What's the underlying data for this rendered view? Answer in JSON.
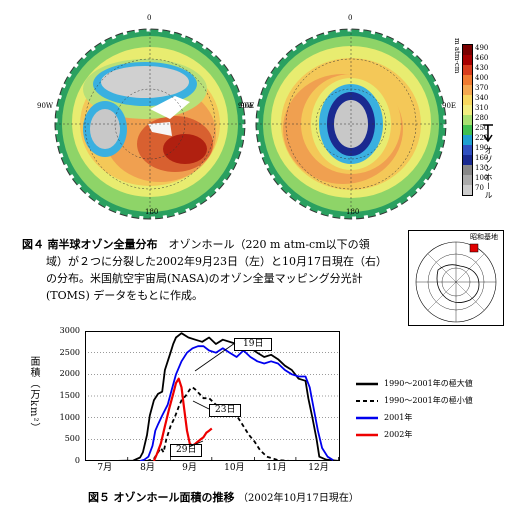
{
  "maps": {
    "left": {
      "lat_top": "0",
      "lat_bottom": "180",
      "lon_left": "90W",
      "lon_right": "90E"
    },
    "right": {
      "lat_top": "0",
      "lat_bottom": "180",
      "lon_left": "90W",
      "lon_right": "90E"
    }
  },
  "colorbar": {
    "unit": "m atm-cm",
    "ticks": [
      "490",
      "460",
      "430",
      "400",
      "370",
      "340",
      "310",
      "280",
      "250",
      "220",
      "190",
      "160",
      "130",
      "100",
      "70"
    ],
    "colors": [
      "#7a0000",
      "#a80000",
      "#d83c1c",
      "#f07a30",
      "#f5a850",
      "#f8d860",
      "#f2ee80",
      "#a8e070",
      "#40c050",
      "#20a0d0",
      "#3050c0",
      "#1a2a90",
      "#888888",
      "#aaaaaa",
      "#cccccc"
    ],
    "hole_label": "オゾンホール"
  },
  "figure4": {
    "num": "図４",
    "title": "南半球オゾン全量分布",
    "line1": "オゾンホール（220 m atm-cm以下の領",
    "line2": "域）が２つに分裂した2002年9月23日（左）と10月17日現在（右）",
    "line3": "の分布。米国航空宇宙局(NASA)のオゾン全量マッピング分光計",
    "line4": "(TOMS) データをもとに作成。"
  },
  "inset": {
    "label": "昭和基地"
  },
  "chart_data": {
    "type": "line",
    "ylabel": "面積（万km²）",
    "ylim": [
      0,
      3000
    ],
    "yticks": [
      "3000",
      "2500",
      "2000",
      "1500",
      "1000",
      "500",
      "0"
    ],
    "months": [
      "7月",
      "8月",
      "9月",
      "10月",
      "11月",
      "12月"
    ],
    "series": [
      {
        "name": "1990～2001年の極大値",
        "color": "#000000",
        "dash": "",
        "points": [
          [
            0,
            0
          ],
          [
            20,
            0
          ],
          [
            35,
            10
          ],
          [
            40,
            80
          ],
          [
            42,
            200
          ],
          [
            45,
            600
          ],
          [
            47,
            1050
          ],
          [
            50,
            1400
          ],
          [
            53,
            1550
          ],
          [
            56,
            1600
          ],
          [
            58,
            2100
          ],
          [
            60,
            2300
          ],
          [
            62,
            2500
          ],
          [
            64,
            2700
          ],
          [
            66,
            2850
          ],
          [
            70,
            2950
          ],
          [
            75,
            2850
          ],
          [
            80,
            2800
          ],
          [
            85,
            2750
          ],
          [
            90,
            2850
          ],
          [
            95,
            2700
          ],
          [
            100,
            2800
          ],
          [
            110,
            2700
          ],
          [
            120,
            2600
          ],
          [
            125,
            2500
          ],
          [
            130,
            2400
          ],
          [
            135,
            2450
          ],
          [
            140,
            2350
          ],
          [
            145,
            2200
          ],
          [
            150,
            2100
          ],
          [
            155,
            1900
          ],
          [
            160,
            1850
          ],
          [
            162,
            1450
          ],
          [
            165,
            1000
          ],
          [
            168,
            500
          ],
          [
            170,
            100
          ],
          [
            175,
            30
          ],
          [
            185,
            0
          ]
        ]
      },
      {
        "name": "1990～2001年の極小値",
        "color": "#000000",
        "dash": "4,3",
        "points": [
          [
            45,
            0
          ],
          [
            50,
            50
          ],
          [
            55,
            300
          ],
          [
            57,
            200
          ],
          [
            59,
            500
          ],
          [
            62,
            800
          ],
          [
            65,
            1000
          ],
          [
            68,
            1250
          ],
          [
            70,
            1400
          ],
          [
            73,
            1500
          ],
          [
            76,
            1650
          ],
          [
            78,
            1700
          ],
          [
            80,
            1650
          ],
          [
            83,
            1550
          ],
          [
            86,
            1450
          ],
          [
            90,
            1450
          ],
          [
            95,
            1300
          ],
          [
            100,
            1250
          ],
          [
            105,
            1150
          ],
          [
            110,
            1050
          ],
          [
            113,
            900
          ],
          [
            116,
            750
          ],
          [
            119,
            600
          ],
          [
            123,
            450
          ],
          [
            127,
            250
          ],
          [
            132,
            100
          ],
          [
            140,
            20
          ],
          [
            150,
            0
          ]
        ]
      },
      {
        "name": "2001年",
        "color": "#0000ee",
        "dash": "",
        "points": [
          [
            40,
            0
          ],
          [
            43,
            30
          ],
          [
            46,
            100
          ],
          [
            49,
            350
          ],
          [
            51,
            700
          ],
          [
            53,
            850
          ],
          [
            56,
            1050
          ],
          [
            60,
            1300
          ],
          [
            63,
            1650
          ],
          [
            66,
            2000
          ],
          [
            70,
            2300
          ],
          [
            74,
            2500
          ],
          [
            78,
            2600
          ],
          [
            82,
            2650
          ],
          [
            86,
            2650
          ],
          [
            90,
            2550
          ],
          [
            95,
            2500
          ],
          [
            100,
            2600
          ],
          [
            105,
            2500
          ],
          [
            110,
            2400
          ],
          [
            115,
            2550
          ],
          [
            120,
            2400
          ],
          [
            125,
            2300
          ],
          [
            130,
            2250
          ],
          [
            135,
            2300
          ],
          [
            140,
            2250
          ],
          [
            145,
            2100
          ],
          [
            150,
            2000
          ],
          [
            155,
            1950
          ],
          [
            160,
            1950
          ],
          [
            163,
            1700
          ],
          [
            166,
            1200
          ],
          [
            169,
            700
          ],
          [
            172,
            300
          ],
          [
            176,
            100
          ],
          [
            180,
            20
          ]
        ]
      },
      {
        "name": "2002年",
        "color": "#ee0000",
        "dash": "",
        "points": [
          [
            50,
            0
          ],
          [
            52,
            150
          ],
          [
            55,
            400
          ],
          [
            58,
            800
          ],
          [
            61,
            1200
          ],
          [
            64,
            1550
          ],
          [
            66,
            1800
          ],
          [
            68,
            1900
          ],
          [
            70,
            1700
          ],
          [
            72,
            1200
          ],
          [
            74,
            700
          ],
          [
            76,
            400
          ],
          [
            78,
            350
          ],
          [
            80,
            400
          ],
          [
            82,
            450
          ],
          [
            84,
            500
          ],
          [
            86,
            550
          ],
          [
            88,
            650
          ],
          [
            90,
            700
          ],
          [
            92,
            750
          ]
        ]
      }
    ],
    "annotations": [
      "19日",
      "23日",
      "29日"
    ]
  },
  "legend": {
    "items": [
      "1990～2001年の極大値",
      "1990～2001年の極小値",
      "2001年",
      "2002年"
    ]
  },
  "figure5": {
    "num": "図５",
    "title": "オゾンホール面積の推移",
    "note": "（2002年10月17日現在）"
  }
}
